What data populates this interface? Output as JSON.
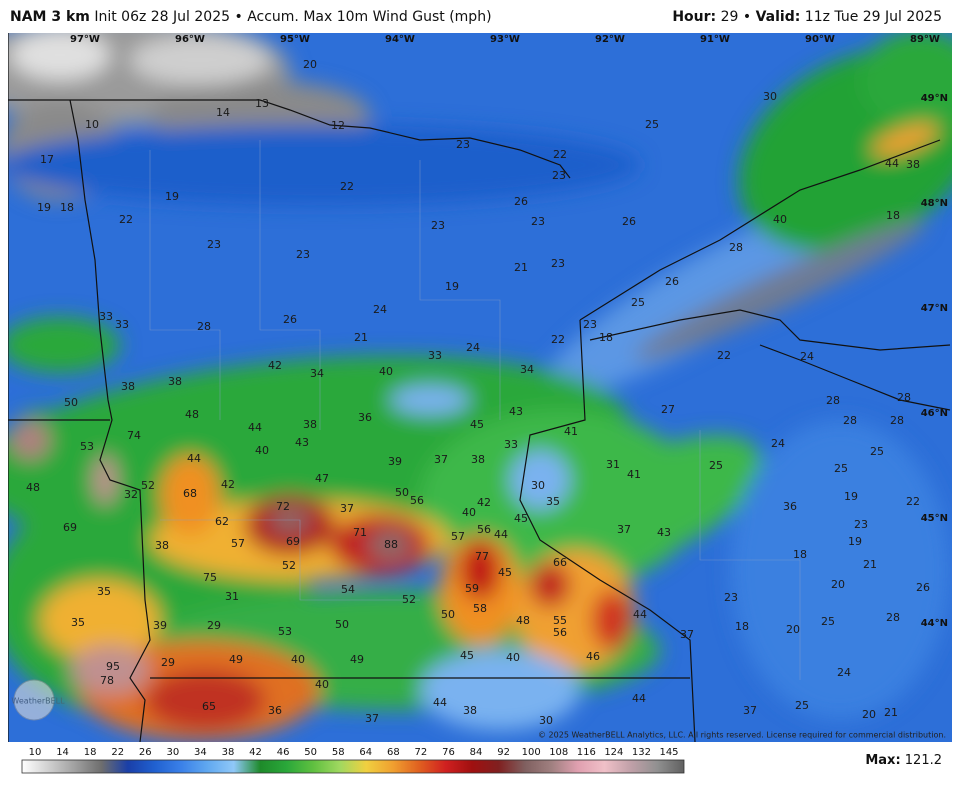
{
  "header": {
    "model": "NAM 3 km",
    "init": "Init 06z 28 Jul 2025",
    "separator": "•",
    "field": "Accum. Max 10m Wind Gust (mph)",
    "hour_label": "Hour:",
    "hour": "29",
    "valid_label": "Valid:",
    "valid": "11z Tue 29 Jul 2025"
  },
  "map": {
    "longitudes": [
      "97°W",
      "96°W",
      "95°W",
      "94°W",
      "93°W",
      "92°W",
      "91°W",
      "90°W",
      "89°W"
    ],
    "latitudes": [
      "49°N",
      "48°N",
      "47°N",
      "46°N",
      "45°N",
      "44°N"
    ],
    "values": [
      20,
      10,
      14,
      13,
      12,
      23,
      22,
      30,
      25,
      17,
      19,
      19,
      18,
      22,
      22,
      23,
      26,
      23,
      26,
      23,
      23,
      23,
      21,
      23,
      19,
      26,
      28,
      40,
      44,
      38,
      18,
      25,
      24,
      26,
      28,
      33,
      33,
      21,
      23,
      18,
      22,
      33,
      24,
      34,
      22,
      24,
      42,
      34,
      40,
      38,
      38,
      50,
      48,
      36,
      38,
      44,
      43,
      27,
      28,
      28,
      28,
      28,
      74,
      53,
      44,
      40,
      43,
      45,
      41,
      33,
      39,
      37,
      38,
      24,
      25,
      31,
      41,
      25,
      25,
      48,
      47,
      42,
      52,
      32,
      68,
      30,
      50,
      56,
      42,
      40,
      35,
      19,
      22,
      36,
      37,
      43,
      72,
      37,
      45,
      56,
      44,
      69,
      62,
      57,
      71,
      88,
      69,
      23,
      19,
      38,
      57,
      52,
      77,
      66,
      18,
      21,
      45,
      75,
      35,
      54,
      59,
      31,
      52,
      20,
      26,
      23,
      58,
      50,
      44,
      35,
      39,
      29,
      48,
      55,
      56,
      53,
      50,
      18,
      20,
      28,
      37,
      25,
      49,
      40,
      49,
      45,
      40,
      46,
      29,
      95,
      24,
      78,
      40,
      44,
      65,
      36,
      44,
      38,
      37,
      37,
      25,
      30,
      20,
      21
    ],
    "logo": "WeatherBELL"
  },
  "copyright": "© 2025 WeatherBELL Analytics, LLC. All rights reserved. License required for commercial distribution.",
  "colorbar": {
    "ticks": [
      10,
      14,
      18,
      22,
      26,
      30,
      34,
      38,
      42,
      46,
      50,
      58,
      64,
      68,
      72,
      76,
      84,
      92,
      100,
      108,
      116,
      124,
      132,
      145
    ]
  },
  "max": {
    "label": "Max:",
    "value": 121.2
  }
}
